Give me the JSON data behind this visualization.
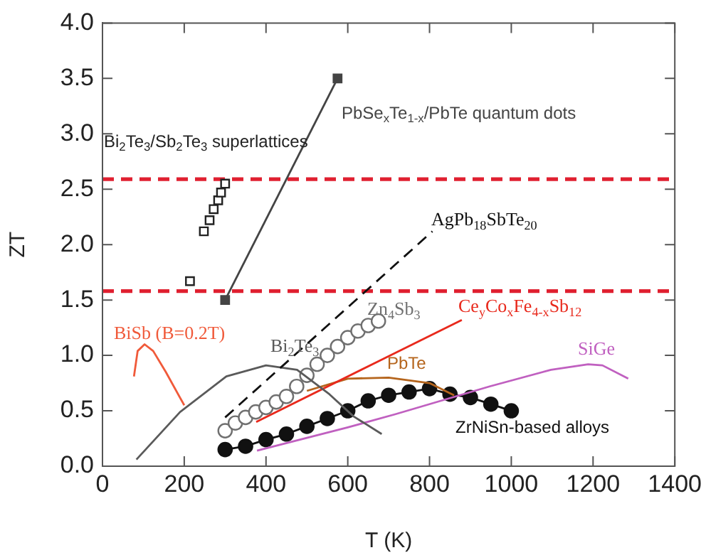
{
  "chart_data": {
    "type": "line",
    "xlabel": "T (K)",
    "ylabel": "ZT",
    "xlim": [
      0,
      1400
    ],
    "xticks": [
      0,
      200,
      400,
      600,
      800,
      1000,
      1200,
      1400
    ],
    "ylim": [
      0,
      4
    ],
    "yticks": [
      {
        "value": 0,
        "label": "0.0"
      },
      {
        "value": 0.5,
        "label": "0.5"
      },
      {
        "value": 1,
        "label": "1.0"
      },
      {
        "value": 1.5,
        "label": "1.5"
      },
      {
        "value": 2,
        "label": "2.0"
      },
      {
        "value": 2.5,
        "label": "2.5"
      },
      {
        "value": 3,
        "label": "3.0"
      },
      {
        "value": 3.5,
        "label": "3.5"
      },
      {
        "value": 4,
        "label": "4.0"
      }
    ],
    "marker": "none",
    "line_style": "solid",
    "series": [
      {
        "name": "Bi$_{2}$Te$_{3}$/Sb$_{2}$Te$_{3}$ superlattices",
        "type": "scatter",
        "marker": "square",
        "color": "#222222",
        "x": [
          214,
          248,
          262,
          272,
          283,
          290,
          300
        ],
        "values": [
          1.67,
          2.12,
          2.22,
          2.32,
          2.4,
          2.47,
          2.55
        ]
      },
      {
        "name": "PbSe$_{x}$Te$_{1-x}$/PbTe quantum dots",
        "marker": "square",
        "color": "#444444",
        "x": [
          300,
          575
        ],
        "values": [
          1.5,
          3.5
        ]
      },
      {
        "name": "AgPb$_{18}$SbTe$_{20}$",
        "line_style": "dashed",
        "color": "#111111",
        "x": [
          300,
          807
        ],
        "values": [
          0.44,
          2.12
        ]
      },
      {
        "name": "BiSb (B=0.2T)",
        "color": "#f05a3a",
        "x": [
          77,
          86,
          103,
          124,
          155,
          200
        ],
        "values": [
          0.81,
          1.04,
          1.1,
          1.04,
          0.85,
          0.55
        ]
      },
      {
        "name": "Bi$_{2}$Te$_{3}$",
        "color": "#5a5a5a",
        "x": [
          83,
          190,
          303,
          400,
          476,
          555,
          614,
          683
        ],
        "values": [
          0.06,
          0.49,
          0.81,
          0.91,
          0.87,
          0.65,
          0.45,
          0.29
        ]
      },
      {
        "name": "Zn$_{4}$Sb$_{3}$",
        "type": "scatter",
        "marker": "circle",
        "color": "#707070",
        "x": [
          300,
          325,
          350,
          375,
          400,
          425,
          450,
          475,
          500,
          525,
          550,
          575,
          600,
          625,
          650,
          675
        ],
        "values": [
          0.32,
          0.39,
          0.44,
          0.49,
          0.53,
          0.58,
          0.63,
          0.72,
          0.82,
          0.92,
          1.0,
          1.08,
          1.16,
          1.22,
          1.27,
          1.31
        ]
      },
      {
        "name": "Ce$_{y}$Co$_{x}$Fe$_{4-x}$Sb$_{12}$",
        "color": "#e8291c",
        "x": [
          376,
          879
        ],
        "values": [
          0.4,
          1.32
        ]
      },
      {
        "name": "PbTe",
        "color": "#b5651d",
        "x": [
          500,
          600,
          700,
          800,
          860
        ],
        "values": [
          0.68,
          0.79,
          0.8,
          0.75,
          0.64
        ]
      },
      {
        "name": "SiGe",
        "color": "#c060c0",
        "x": [
          378,
          600,
          717,
          947,
          1097,
          1188,
          1223,
          1286
        ],
        "values": [
          0.14,
          0.35,
          0.47,
          0.72,
          0.87,
          0.92,
          0.91,
          0.79
        ]
      },
      {
        "name": "ZrNiSn-based alloys",
        "marker": "circle",
        "color": "#111111",
        "x": [
          300,
          350,
          400,
          450,
          500,
          550,
          600,
          650,
          700,
          750,
          800,
          850,
          900,
          950,
          1000
        ],
        "values": [
          0.15,
          0.18,
          0.24,
          0.29,
          0.36,
          0.43,
          0.5,
          0.59,
          0.64,
          0.67,
          0.7,
          0.65,
          0.62,
          0.56,
          0.5
        ]
      }
    ],
    "ref_lines": [
      {
        "axis": "y",
        "value": 2.59,
        "color": "#e02030",
        "line_style": "dashed"
      },
      {
        "axis": "y",
        "value": 1.58,
        "color": "#e02030",
        "line_style": "dashed"
      }
    ]
  }
}
